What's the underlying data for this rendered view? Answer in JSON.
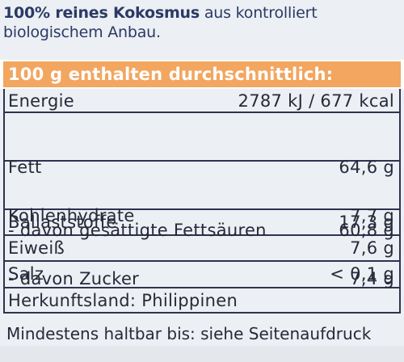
{
  "intro": {
    "bold": "100% reines Kokosmus",
    "rest": " aus kontrolliert",
    "line2": "biologischem Anbau."
  },
  "header": {
    "title": "100 g enthalten durchschnittlich:"
  },
  "nutrition": {
    "energy": {
      "label": "Energie",
      "value": "2787 kJ / 677 kcal"
    },
    "fat": {
      "label": "Fett",
      "value": "64,6 g"
    },
    "saturated": {
      "label": "- davon gesättigte Fettsäuren",
      "value": "60,8 g"
    },
    "carbs": {
      "label": "Kohlenhydrate",
      "value": "7,7 g"
    },
    "sugar": {
      "label": "- davon Zucker",
      "value": "7,4 g"
    },
    "fibre": {
      "label": "Ballaststoffe",
      "value": "17,3 g"
    },
    "protein": {
      "label": "Eiweiß",
      "value": "7,6 g"
    },
    "salt": {
      "label": "Salz",
      "value": "< 0,1 g"
    }
  },
  "origin": "Herkunftsland: Philippinen",
  "best_before": "Mindestens haltbar bis: siehe Seitenaufdruck",
  "colors": {
    "header_orange": "#f2a660",
    "text_dark": "#27293a",
    "intro_blue": "#2a3a66",
    "background": "#eceff3"
  }
}
